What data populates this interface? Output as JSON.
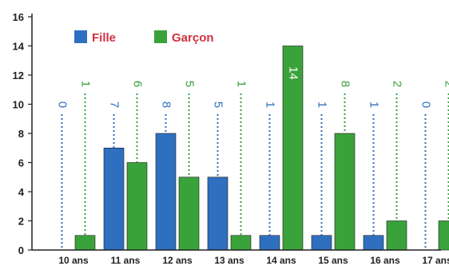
{
  "chart_data": {
    "type": "bar",
    "title": "",
    "xlabel": "",
    "ylabel": "",
    "ylim": [
      0,
      16
    ],
    "yticks": [
      "0",
      "2",
      "4",
      "6",
      "8",
      "10",
      "12",
      "14",
      "16"
    ],
    "categories": [
      "10 ans",
      "11 ans",
      "12 ans",
      "13 ans",
      "14 ans",
      "15 ans",
      "16 ans",
      "17 ans"
    ],
    "series": [
      {
        "name": "Fille",
        "color": "#2f6fc0",
        "values": [
          0,
          7,
          8,
          5,
          1,
          1,
          1,
          0
        ]
      },
      {
        "name": "Garçon",
        "color": "#3aa23a",
        "values": [
          1,
          6,
          5,
          1,
          14,
          8,
          2,
          2
        ]
      }
    ],
    "legend": "top-left",
    "legend_text_color": "#d0313f",
    "grid": false
  }
}
